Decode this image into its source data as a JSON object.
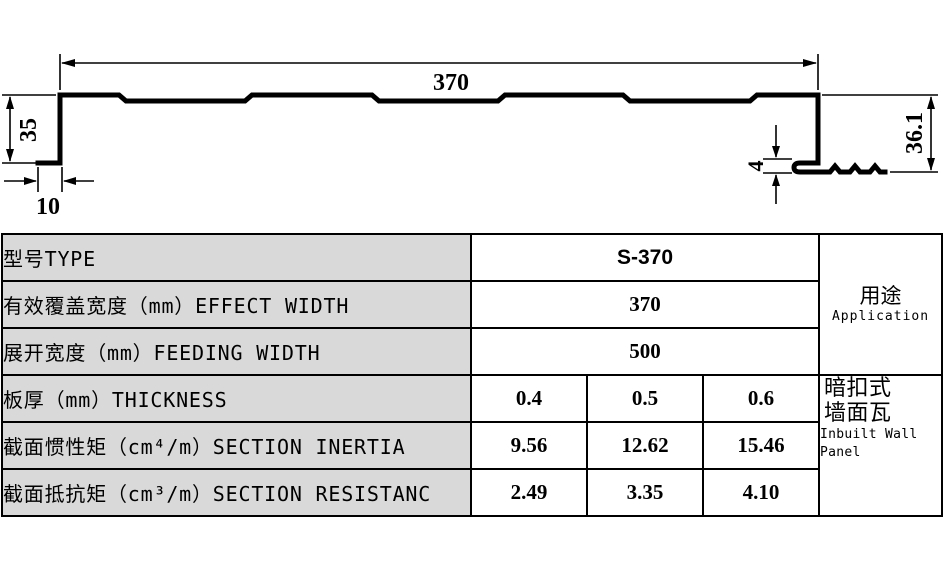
{
  "drawing": {
    "overall_width": "370",
    "left_height": "35",
    "left_flange": "10",
    "right_height": "36.1",
    "lap_thickness": "4"
  },
  "table": {
    "rows": [
      {
        "label": "型号TYPE",
        "values": [
          "S-370"
        ]
      },
      {
        "label": "有效覆盖宽度（mm）EFFECT WIDTH",
        "values": [
          "370"
        ]
      },
      {
        "label": "展开宽度（mm）FEEDING WIDTH",
        "values": [
          "500"
        ]
      },
      {
        "label": "板厚（mm）THICKNESS",
        "values": [
          "0.4",
          "0.5",
          "0.6"
        ]
      },
      {
        "label": "截面惯性矩（cm⁴/m）SECTION INERTIA",
        "values": [
          "9.56",
          "12.62",
          "15.46"
        ]
      },
      {
        "label": "截面抵抗矩（cm³/m）SECTION RESISTANC",
        "values": [
          "2.49",
          "3.35",
          "4.10"
        ]
      }
    ],
    "application": {
      "title_cn": "用途",
      "title_en": "Application",
      "type_cn_line1": "暗扣式",
      "type_cn_line2": "墙面瓦",
      "type_en_line1": "Inbuilt Wall",
      "type_en_line2": "Panel"
    }
  },
  "colors": {
    "page_background": "#ffffff",
    "line": "#000000",
    "label_background": "#d9d9d9"
  }
}
